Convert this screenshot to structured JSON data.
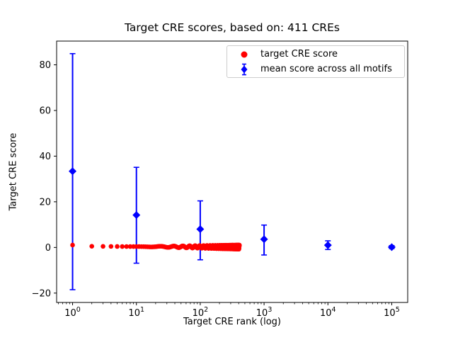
{
  "chart_data": {
    "type": "scatter",
    "title": "Target CRE scores, based on: 411 CREs",
    "xlabel": "Target CRE rank (log)",
    "ylabel": "Target CRE score",
    "x_scale": "log",
    "xlim_log10": [
      -0.25,
      5.25
    ],
    "ylim": [
      -24.1,
      90.4
    ],
    "x_tick_exponents": [
      0,
      1,
      2,
      3,
      4,
      5
    ],
    "y_ticks": [
      -20,
      0,
      20,
      40,
      60,
      80
    ],
    "grid": false,
    "colors": {
      "target": "#ff0000",
      "mean": "#0000ff",
      "axes": "#000000",
      "legend_border": "#cccccc"
    },
    "legend": {
      "position": "upper right",
      "entries": [
        {
          "label": "target CRE score",
          "marker": "circle",
          "color": "#ff0000"
        },
        {
          "label": "mean score across all motifs",
          "marker": "diamond-errorbar",
          "color": "#0000ff"
        }
      ]
    },
    "series": [
      {
        "name": "mean score across all motifs",
        "type": "errorbar",
        "marker": "diamond",
        "color": "#0000ff",
        "points": [
          {
            "x": 1,
            "mean": 33.4,
            "lo": -18.5,
            "hi": 84.9
          },
          {
            "x": 10,
            "mean": 14.2,
            "lo": -6.9,
            "hi": 35.1
          },
          {
            "x": 100,
            "mean": 8.0,
            "lo": -5.4,
            "hi": 20.4
          },
          {
            "x": 1000,
            "mean": 3.6,
            "lo": -3.3,
            "hi": 9.8
          },
          {
            "x": 10000,
            "mean": 1.0,
            "lo": -0.9,
            "hi": 2.9
          },
          {
            "x": 100000,
            "mean": 0.15,
            "lo": -0.5,
            "hi": 0.8
          }
        ]
      },
      {
        "name": "target CRE score",
        "type": "scatter",
        "marker": "circle",
        "color": "#ff0000",
        "n_points": 411,
        "points_sampled": [
          [
            1,
            1.05
          ],
          [
            2,
            0.52
          ],
          [
            3,
            0.48
          ],
          [
            4,
            0.45
          ],
          [
            5,
            0.42
          ],
          [
            7,
            0.4
          ],
          [
            10,
            0.38
          ],
          [
            15,
            0.35
          ],
          [
            20,
            0.33
          ],
          [
            30,
            0.3
          ],
          [
            50,
            0.28
          ],
          [
            75,
            0.26
          ],
          [
            100,
            0.25
          ],
          [
            150,
            0.22
          ],
          [
            200,
            0.2
          ],
          [
            300,
            0.18
          ],
          [
            411,
            0.15
          ]
        ],
        "jitter": 0.9
      }
    ]
  }
}
